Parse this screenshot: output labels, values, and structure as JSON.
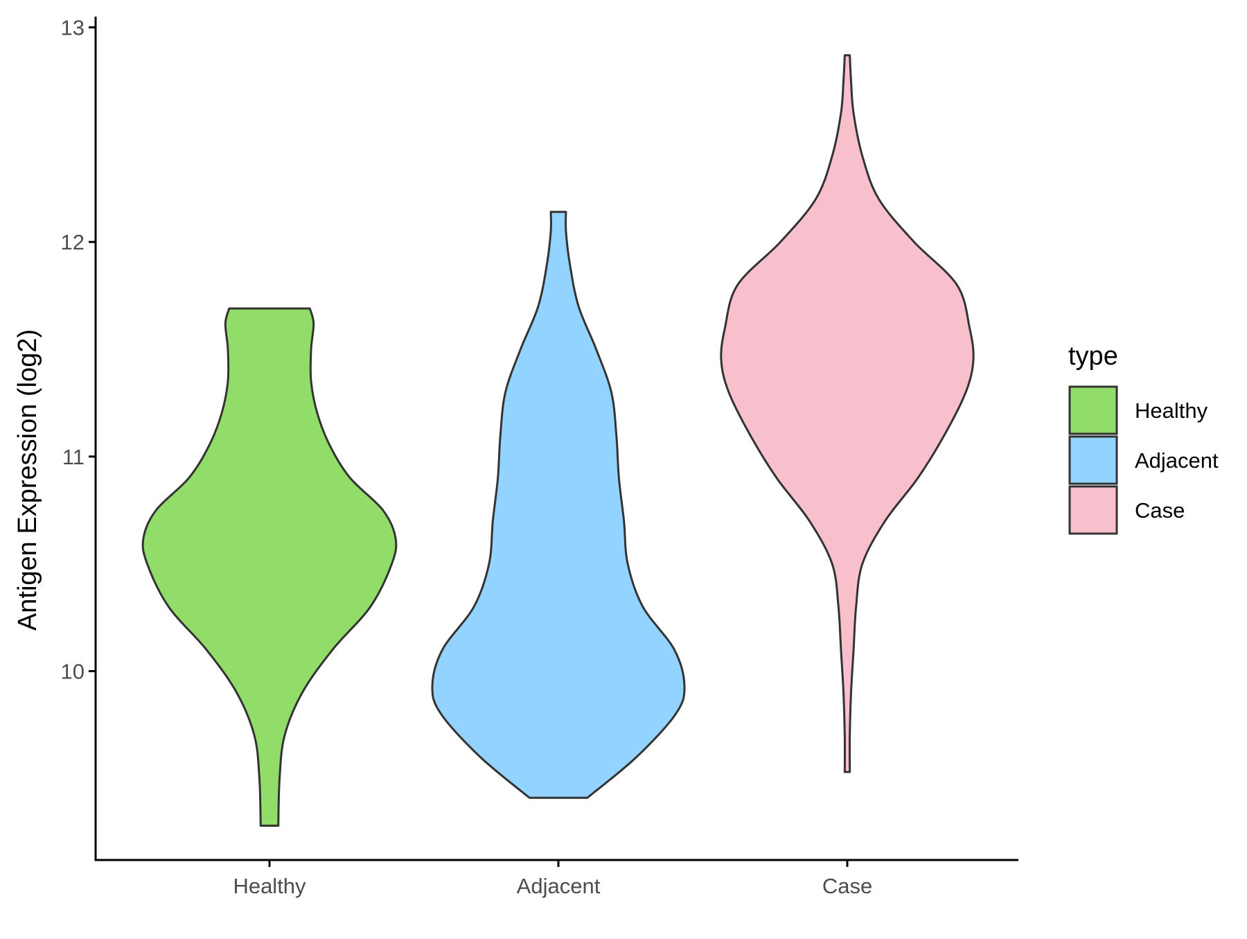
{
  "chart_data": {
    "type": "violin",
    "title": "",
    "xlabel": "",
    "ylabel": "Antigen Expression (log2)",
    "categories": [
      "Healthy",
      "Adjacent",
      "Case"
    ],
    "y_ticks": [
      "10",
      "11",
      "12",
      "13"
    ],
    "ylim": [
      9.12,
      13.05
    ],
    "grid": false,
    "legend": {
      "title": "type",
      "position": "right",
      "entries": [
        "Healthy",
        "Adjacent",
        "Case"
      ]
    },
    "colors": {
      "Healthy": "#92DC6A",
      "Adjacent": "#93D3FF",
      "Case": "#F8C0CC",
      "outline": "#333333"
    },
    "series": [
      {
        "category": "Healthy",
        "y_range": [
          9.28,
          11.69
        ],
        "density_profile": [
          [
            9.28,
            0.07
          ],
          [
            9.5,
            0.08
          ],
          [
            9.7,
            0.12
          ],
          [
            9.9,
            0.26
          ],
          [
            10.1,
            0.5
          ],
          [
            10.3,
            0.8
          ],
          [
            10.5,
            0.97
          ],
          [
            10.62,
            1.0
          ],
          [
            10.75,
            0.9
          ],
          [
            10.9,
            0.64
          ],
          [
            11.05,
            0.48
          ],
          [
            11.2,
            0.38
          ],
          [
            11.35,
            0.33
          ],
          [
            11.5,
            0.33
          ],
          [
            11.62,
            0.35
          ],
          [
            11.69,
            0.32
          ]
        ]
      },
      {
        "category": "Adjacent",
        "y_range": [
          9.41,
          12.14
        ],
        "density_profile": [
          [
            9.41,
            0.23
          ],
          [
            9.6,
            0.62
          ],
          [
            9.8,
            0.93
          ],
          [
            9.93,
            1.0
          ],
          [
            10.1,
            0.92
          ],
          [
            10.3,
            0.67
          ],
          [
            10.5,
            0.55
          ],
          [
            10.7,
            0.52
          ],
          [
            10.9,
            0.48
          ],
          [
            11.1,
            0.46
          ],
          [
            11.3,
            0.42
          ],
          [
            11.5,
            0.3
          ],
          [
            11.7,
            0.16
          ],
          [
            11.9,
            0.09
          ],
          [
            12.05,
            0.06
          ],
          [
            12.14,
            0.06
          ]
        ]
      },
      {
        "category": "Case",
        "y_range": [
          9.53,
          12.87
        ],
        "density_profile": [
          [
            9.53,
            0.02
          ],
          [
            9.7,
            0.02
          ],
          [
            9.9,
            0.03
          ],
          [
            10.1,
            0.05
          ],
          [
            10.3,
            0.07
          ],
          [
            10.5,
            0.12
          ],
          [
            10.7,
            0.3
          ],
          [
            10.9,
            0.56
          ],
          [
            11.1,
            0.77
          ],
          [
            11.3,
            0.94
          ],
          [
            11.45,
            1.0
          ],
          [
            11.6,
            0.97
          ],
          [
            11.8,
            0.87
          ],
          [
            12.0,
            0.53
          ],
          [
            12.2,
            0.25
          ],
          [
            12.4,
            0.12
          ],
          [
            12.6,
            0.05
          ],
          [
            12.75,
            0.03
          ],
          [
            12.87,
            0.02
          ]
        ]
      }
    ]
  }
}
